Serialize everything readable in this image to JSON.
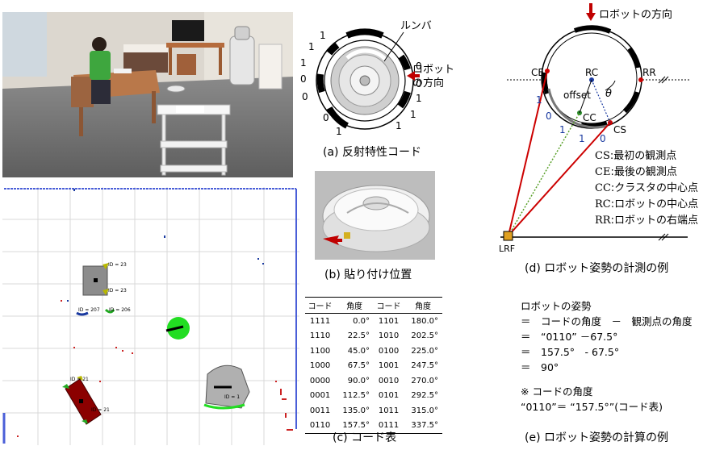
{
  "panel_a": {
    "label_roomba": "ルンバ",
    "label_direction_line1": "ロボット",
    "label_direction_line2": "の方向",
    "bits_left": [
      "1",
      "0",
      "0",
      "1"
    ],
    "bits_right": [
      "0",
      "0",
      "1",
      "1"
    ],
    "bits_top": [
      "1",
      "1"
    ],
    "bits_bottom": [
      "0",
      "1"
    ],
    "caption": "(a) 反射特性コード"
  },
  "panel_b": {
    "caption": "(b) 貼り付け位置"
  },
  "map": {
    "tag_23_top": "ID = 23",
    "tag_23_bottom": "ID = 23",
    "tag_207": "ID = 207",
    "tag_206": "ID = 206",
    "tag_21_a": "ID = 21",
    "tag_21_b": "ID = 21",
    "tag_1": "ID = 1"
  },
  "code_table": {
    "headers": [
      "コード",
      "角度",
      "コード",
      "角度"
    ],
    "rows": [
      [
        "1111",
        "0.0°",
        "1101",
        "180.0°"
      ],
      [
        "1110",
        "22.5°",
        "1010",
        "202.5°"
      ],
      [
        "1100",
        "45.0°",
        "0100",
        "225.0°"
      ],
      [
        "1000",
        "67.5°",
        "1001",
        "247.5°"
      ],
      [
        "0000",
        "90.0°",
        "0010",
        "270.0°"
      ],
      [
        "0001",
        "112.5°",
        "0101",
        "292.5°"
      ],
      [
        "0011",
        "135.0°",
        "1011",
        "315.0°"
      ],
      [
        "0110",
        "157.5°",
        "0111",
        "337.5°"
      ]
    ],
    "caption": "(c) コード表"
  },
  "panel_d": {
    "robot_direction": "ロボットの方向",
    "ce": "CE",
    "rc": "RC",
    "rr": "RR",
    "offset": "offset",
    "cc": "CC",
    "cs": "CS",
    "theta": "θ",
    "lrf": "LRF",
    "bits": [
      "1",
      "0",
      "1",
      "1",
      "0"
    ],
    "legend": [
      {
        "abbr": "CS",
        "desc": ":最初の観測点"
      },
      {
        "abbr": "CE",
        "desc": ":最後の観測点"
      },
      {
        "abbr": "CC",
        "desc": ":クラスタの中心点"
      },
      {
        "abbr": "RC",
        "desc": ":ロボットの中心点"
      },
      {
        "abbr": "RR",
        "desc": ":ロボットの右端点"
      }
    ],
    "caption": "(d) ロボット姿勢の計測の例"
  },
  "panel_e": {
    "lines": [
      "ロボットの姿勢",
      "＝　コードの角度　－　観測点の角度",
      "＝　“0110” －67.5°",
      "＝　157.5°　- 67.5°",
      "＝　90°"
    ],
    "note_title": "※ コードの角度",
    "note_body": "“0110”＝ “157.5°”(コード表)",
    "caption": "(e) ロボット姿勢の計算の例"
  },
  "colors": {
    "arrow_red": "#c00000",
    "grid": "#d9d9d9",
    "map_border": "#4a5fd8",
    "robot_green": "#22dd22",
    "obstacle_red": "#8b0000",
    "obstacle_gray": "#8c8c8c"
  }
}
